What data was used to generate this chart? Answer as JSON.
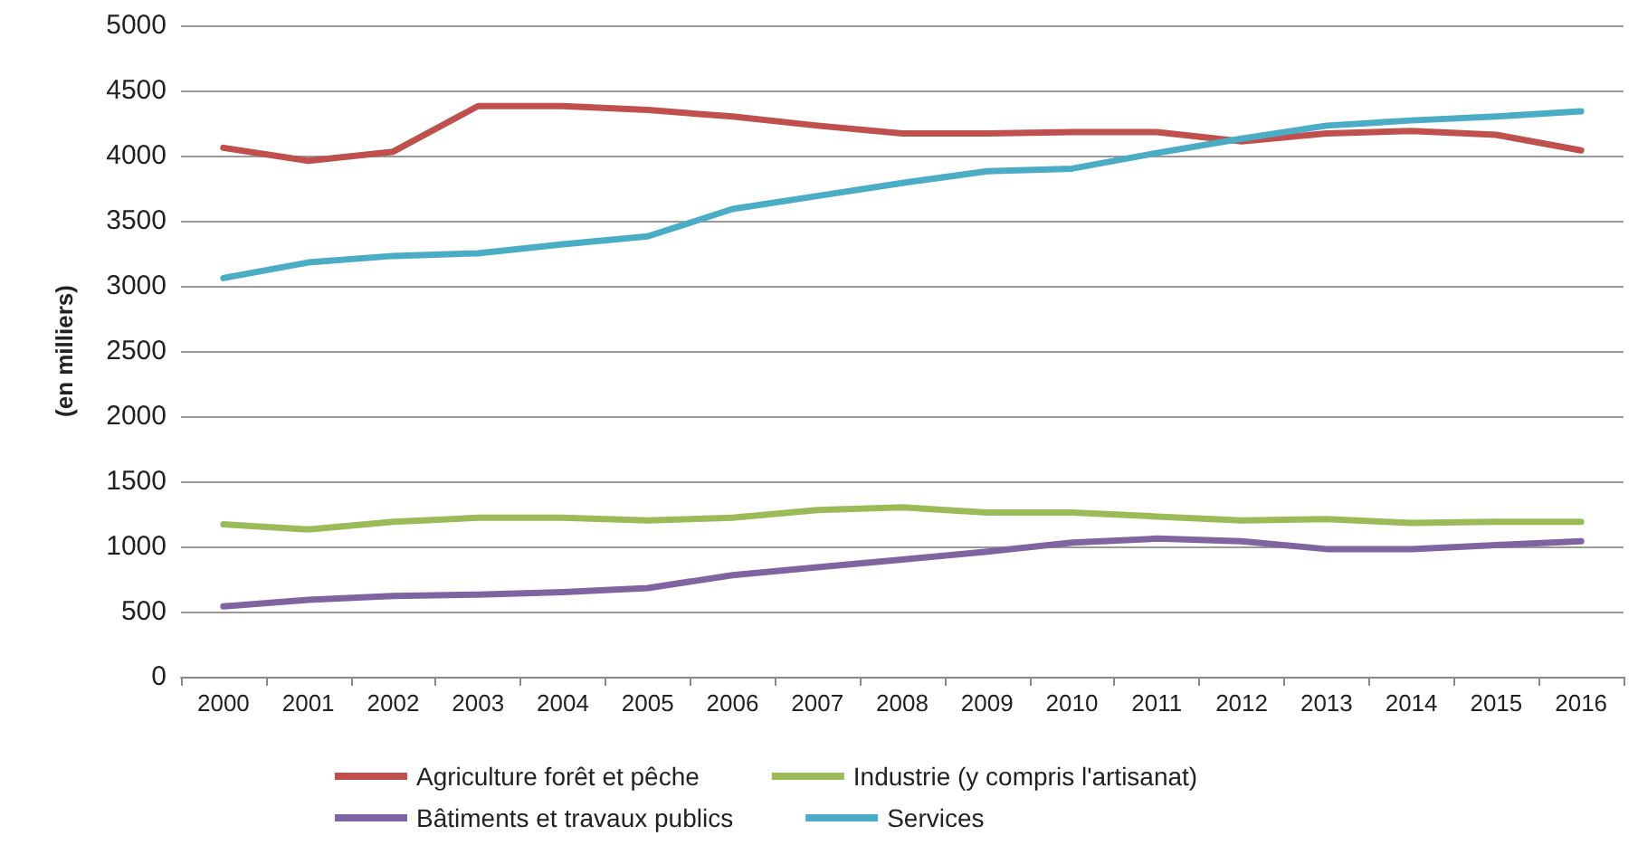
{
  "chart_data": {
    "type": "line",
    "ylabel": "(en milliers)",
    "categories": [
      "2000",
      "2001",
      "2002",
      "2003",
      "2004",
      "2005",
      "2006",
      "2007",
      "2008",
      "2009",
      "2010",
      "2011",
      "2012",
      "2013",
      "2014",
      "2015",
      "2016"
    ],
    "series": [
      {
        "name": "Agriculture forêt et pêche",
        "color": "#c0504d",
        "values": [
          4060,
          3960,
          4030,
          4380,
          4380,
          4350,
          4300,
          4230,
          4170,
          4170,
          4180,
          4180,
          4110,
          4170,
          4190,
          4160,
          4040
        ]
      },
      {
        "name": "Industrie (y compris l'artisanat)",
        "color": "#9bbb59",
        "values": [
          1170,
          1130,
          1190,
          1220,
          1220,
          1200,
          1220,
          1280,
          1300,
          1260,
          1260,
          1230,
          1200,
          1210,
          1180,
          1190,
          1190
        ]
      },
      {
        "name": "Bâtiments et travaux publics",
        "color": "#8064a2",
        "values": [
          540,
          590,
          620,
          630,
          650,
          680,
          780,
          840,
          900,
          960,
          1030,
          1060,
          1040,
          980,
          980,
          1010,
          1040
        ]
      },
      {
        "name": "Services",
        "color": "#4bacc6",
        "values": [
          3060,
          3180,
          3230,
          3250,
          3320,
          3380,
          3590,
          3690,
          3790,
          3880,
          3900,
          4020,
          4130,
          4230,
          4270,
          4300,
          4340
        ]
      }
    ],
    "ylim": [
      0,
      5000
    ],
    "yticks": [
      0,
      500,
      1000,
      1500,
      2000,
      2500,
      3000,
      3500,
      4000,
      4500,
      5000
    ],
    "grid": "y",
    "legend": "bottom",
    "marker": "none",
    "line_style": "solid"
  }
}
